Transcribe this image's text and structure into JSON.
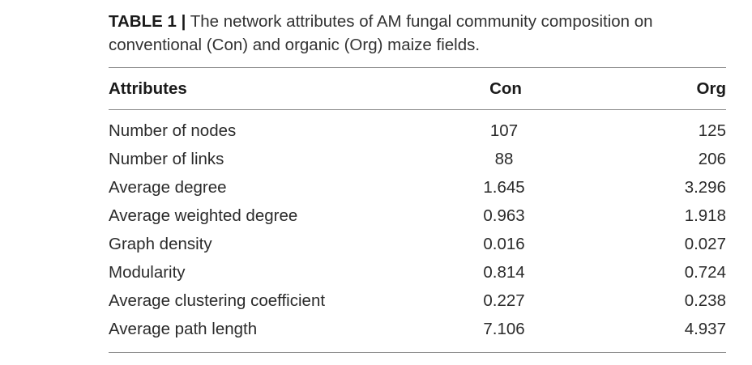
{
  "caption": {
    "label": "TABLE 1",
    "separator": "|",
    "text": "The network attributes of AM fungal community composition on conventional (Con) and organic (Org) maize fields."
  },
  "table": {
    "headers": [
      "Attributes",
      "Con",
      "Org"
    ],
    "rows": [
      {
        "attribute": "Number of nodes",
        "con": "107",
        "org": "125"
      },
      {
        "attribute": "Number of links",
        "con": "88",
        "org": "206"
      },
      {
        "attribute": "Average degree",
        "con": "1.645",
        "org": "3.296"
      },
      {
        "attribute": "Average weighted degree",
        "con": "0.963",
        "org": "1.918"
      },
      {
        "attribute": "Graph density",
        "con": "0.016",
        "org": "0.027"
      },
      {
        "attribute": "Modularity",
        "con": "0.814",
        "org": "0.724"
      },
      {
        "attribute": "Average clustering coefficient",
        "con": "0.227",
        "org": "0.238"
      },
      {
        "attribute": "Average path length",
        "con": "7.106",
        "org": "4.937"
      }
    ]
  }
}
